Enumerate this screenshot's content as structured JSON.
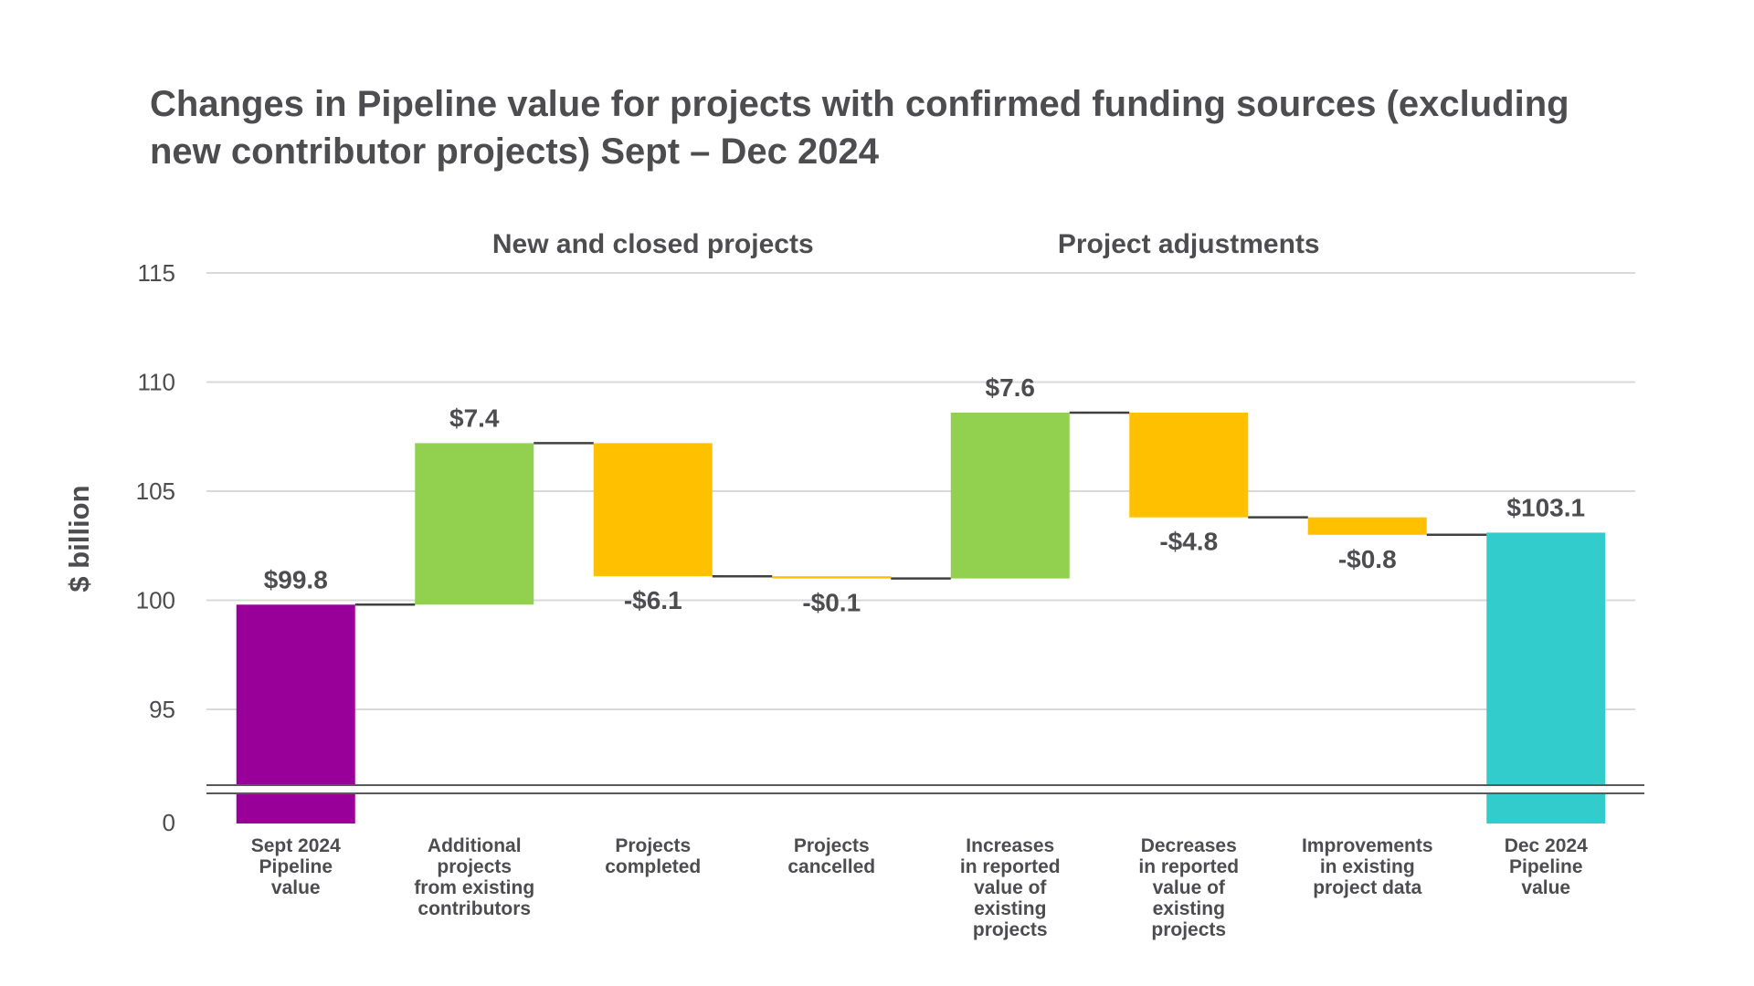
{
  "chart_data": {
    "type": "waterfall",
    "title_lines": [
      "Changes in Pipeline value for projects with confirmed funding sources (excluding",
      "new contributor projects) Sept – Dec 2024"
    ],
    "ylabel": "$ billion",
    "ylim": [
      95,
      115
    ],
    "yticks": [
      95,
      100,
      105,
      110,
      115
    ],
    "axis_break": {
      "below": 95,
      "bottom_tick": 0
    },
    "groups": [
      {
        "label": "New and closed projects",
        "categories": [
          1,
          2,
          3
        ]
      },
      {
        "label": "Project adjustments",
        "categories": [
          4,
          5,
          6
        ]
      }
    ],
    "categories": [
      [
        "Sept 2024",
        "Pipeline",
        "value"
      ],
      [
        "Additional",
        "projects",
        "from existing",
        "contributors"
      ],
      [
        "Projects",
        "completed"
      ],
      [
        "Projects",
        "cancelled"
      ],
      [
        "Increases",
        "in reported",
        "value of",
        "existing",
        "projects"
      ],
      [
        "Decreases",
        "in reported",
        "value of",
        "existing",
        "projects"
      ],
      [
        "Improvements",
        "in existing",
        "project data"
      ],
      [
        "Dec 2024",
        "Pipeline",
        "value"
      ]
    ],
    "bars": [
      {
        "kind": "total",
        "value": 99.8,
        "label": "$99.8",
        "color": "#990099"
      },
      {
        "kind": "delta",
        "value": 7.4,
        "label": "$7.4",
        "color": "#92d050"
      },
      {
        "kind": "delta",
        "value": -6.1,
        "label": "-$6.1",
        "color": "#ffc000"
      },
      {
        "kind": "delta",
        "value": -0.1,
        "label": "-$0.1",
        "color": "#ffc000"
      },
      {
        "kind": "delta",
        "value": 7.6,
        "label": "$7.6",
        "color": "#92d050"
      },
      {
        "kind": "delta",
        "value": -4.8,
        "label": "-$4.8",
        "color": "#ffc000"
      },
      {
        "kind": "delta",
        "value": -0.8,
        "label": "-$0.8",
        "color": "#ffc000"
      },
      {
        "kind": "total",
        "value": 103.1,
        "label": "$103.1",
        "color": "#33cccc"
      }
    ],
    "colors": {
      "gridline": "#d9d9d9",
      "connector": "#404040",
      "text": "#4d4d4f"
    },
    "grid": true,
    "legend": "none"
  }
}
